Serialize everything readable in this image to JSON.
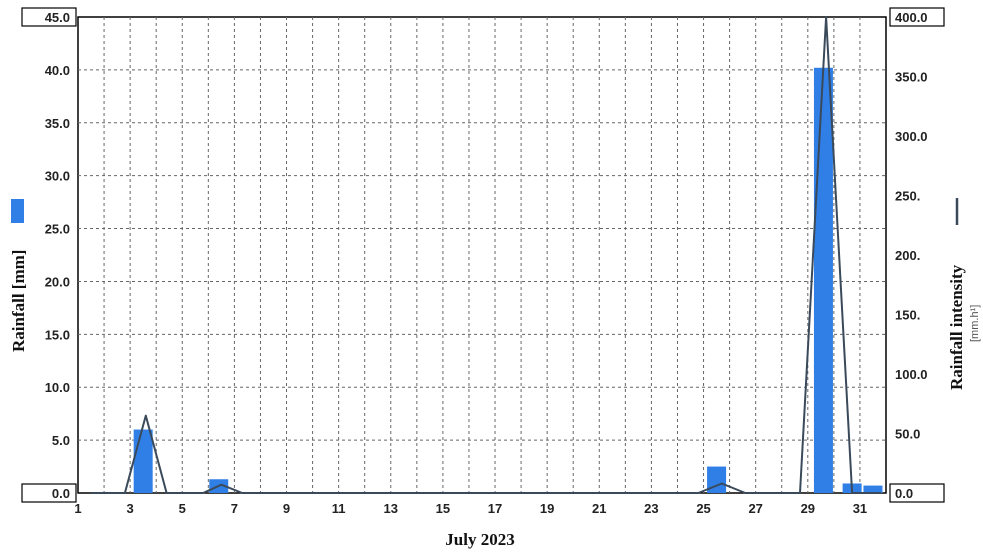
{
  "chart_data": {
    "type": "bar",
    "xlabel": "July 2023",
    "ylabel": "Rainfall [mm]",
    "y2label": "Rainfall intensity",
    "y2unit": "[mm.h¹]",
    "x_ticks": [
      "1",
      "3",
      "5",
      "7",
      "9",
      "11",
      "13",
      "15",
      "17",
      "19",
      "21",
      "23",
      "25",
      "27",
      "29",
      "31"
    ],
    "xlim": [
      1,
      32
    ],
    "ylim": [
      0,
      45
    ],
    "y2lim": [
      0,
      400
    ],
    "y_ticks": [
      "0.0",
      "5.0",
      "10.0",
      "15.0",
      "20.0",
      "25.0",
      "30.0",
      "35.0",
      "40.0",
      "45.0"
    ],
    "y2_ticks": [
      "0.0",
      "50.0",
      "100.0",
      "150.",
      "200.",
      "250.",
      "300.0",
      "350.0",
      "400.0"
    ],
    "grid": true,
    "bar_color": "#2f7fe6",
    "line_color": "#3a4a5a",
    "series": [
      {
        "axis": "left",
        "type": "bar",
        "days": [
          3.5,
          6.4,
          25.5,
          29.6,
          30.7,
          31.5
        ],
        "values": [
          6.0,
          1.3,
          2.5,
          40.2,
          0.9,
          0.7
        ]
      },
      {
        "axis": "right",
        "type": "line",
        "x": [
          1.5,
          2.8,
          3.6,
          4.4,
          5.8,
          6.5,
          7.3,
          24.8,
          25.7,
          26.6,
          28.7,
          29.7,
          30.7,
          31.8
        ],
        "y": [
          0,
          0,
          65,
          0,
          0,
          7,
          0,
          0,
          8,
          0,
          0,
          400,
          0,
          0
        ]
      }
    ]
  }
}
